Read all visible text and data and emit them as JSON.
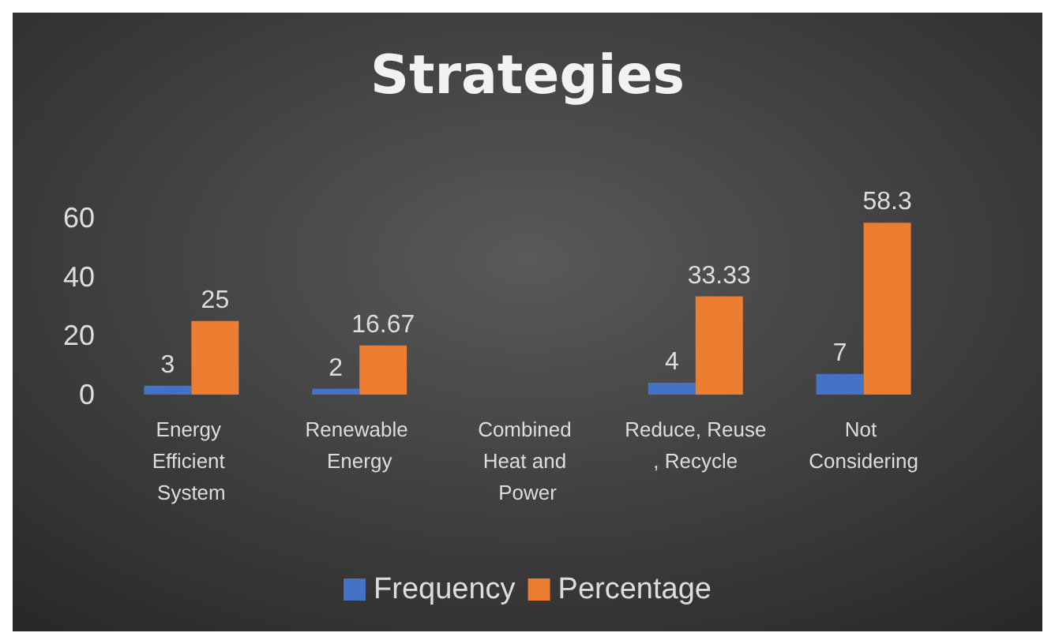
{
  "chart_data": {
    "type": "bar",
    "title": "Strategies",
    "categories": [
      "Energy Efficient System",
      "Renewable Energy",
      "Combined Heat and Power",
      "Reduce, Reuse, Recycle",
      "Not Considering"
    ],
    "series": [
      {
        "name": "Frequency",
        "color": "#4472c4",
        "values": [
          3,
          2,
          0,
          4,
          7
        ],
        "value_labels": [
          "3",
          "2",
          null,
          "4",
          "7"
        ]
      },
      {
        "name": "Percentage",
        "color": "#ed7d31",
        "values": [
          25,
          16.67,
          0,
          33.33,
          58.3
        ],
        "value_labels": [
          "25",
          "16.67",
          null,
          "33.33",
          "58.3"
        ]
      }
    ],
    "ylim": [
      0,
      60
    ],
    "yticks": [
      0,
      20,
      40,
      60
    ],
    "grid": false,
    "legend": "bottom"
  }
}
